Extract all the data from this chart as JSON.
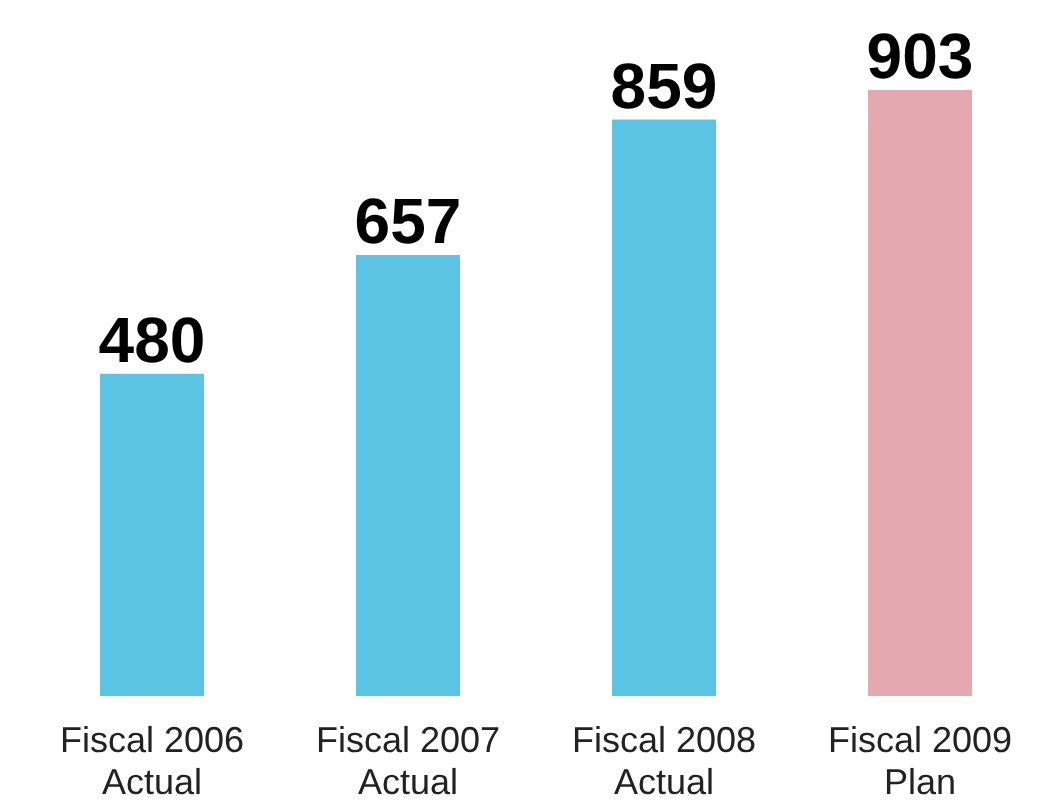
{
  "chart_data": {
    "type": "bar",
    "categories": [
      "Fiscal 2006\nActual",
      "Fiscal 2007\nActual",
      "Fiscal 2008\nActual",
      "Fiscal 2009\nPlan"
    ],
    "values": [
      480,
      657,
      859,
      903
    ],
    "colors": [
      "#5bc5e3",
      "#5bc5e3",
      "#5bc5e3",
      "#e4a9b0"
    ],
    "data_labels": true,
    "grid": false,
    "legend": false
  }
}
